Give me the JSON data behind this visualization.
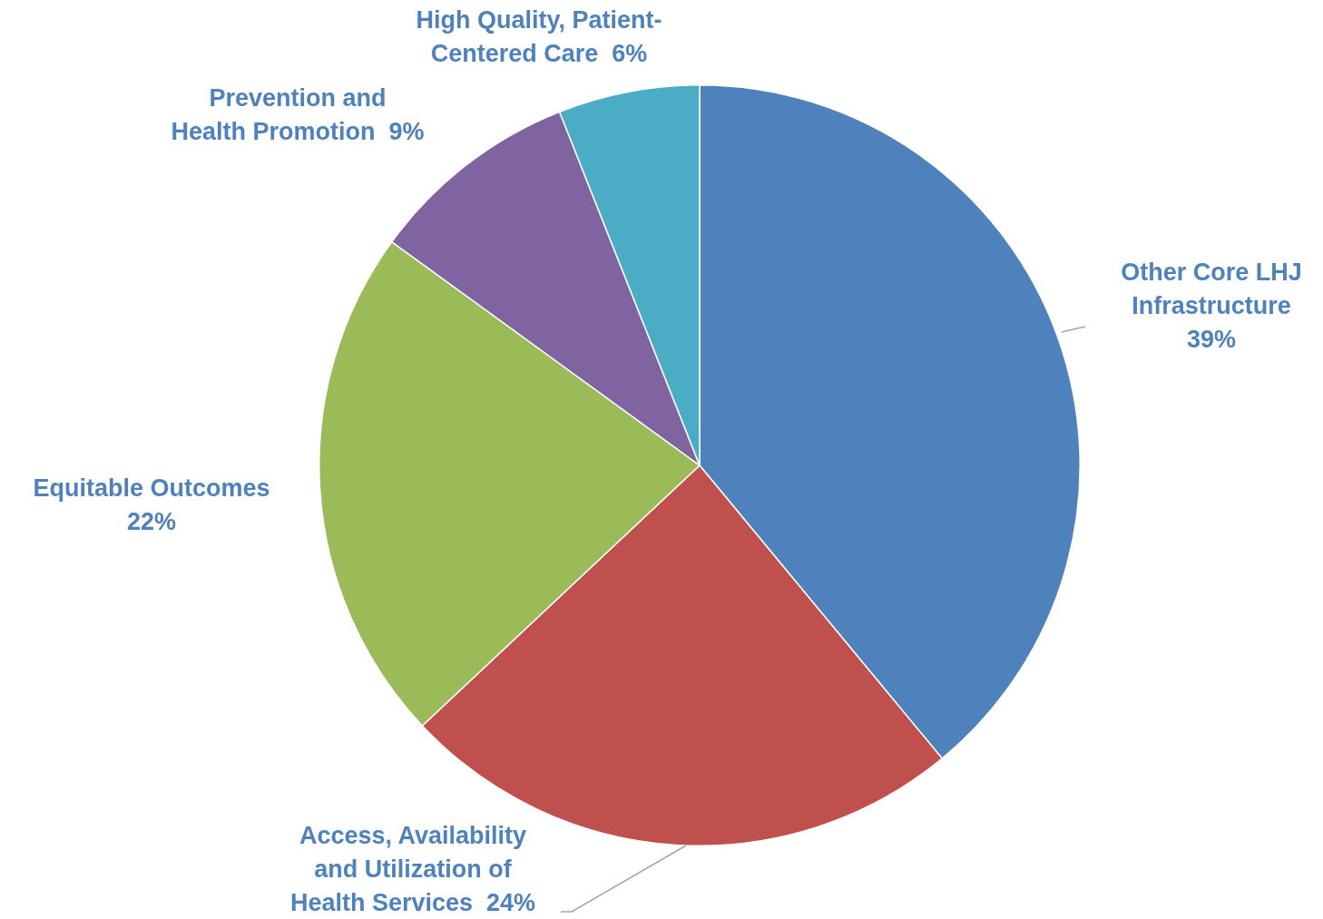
{
  "chart_data": {
    "type": "pie",
    "categories": [
      "Other Core LHJ Infrastructure",
      "Access, Availability and Utilization of Health Services",
      "Equitable Outcomes",
      "Prevention and Health Promotion",
      "High Quality, Patient-Centered Care"
    ],
    "values": [
      39,
      24,
      22,
      9,
      6
    ],
    "value_labels": [
      "39%",
      "24%",
      "22%",
      "9%",
      "6%"
    ],
    "colors": [
      "#4f81bd",
      "#c0504d",
      "#9bbb59",
      "#8064a2",
      "#4bacc6"
    ],
    "legend": false
  }
}
